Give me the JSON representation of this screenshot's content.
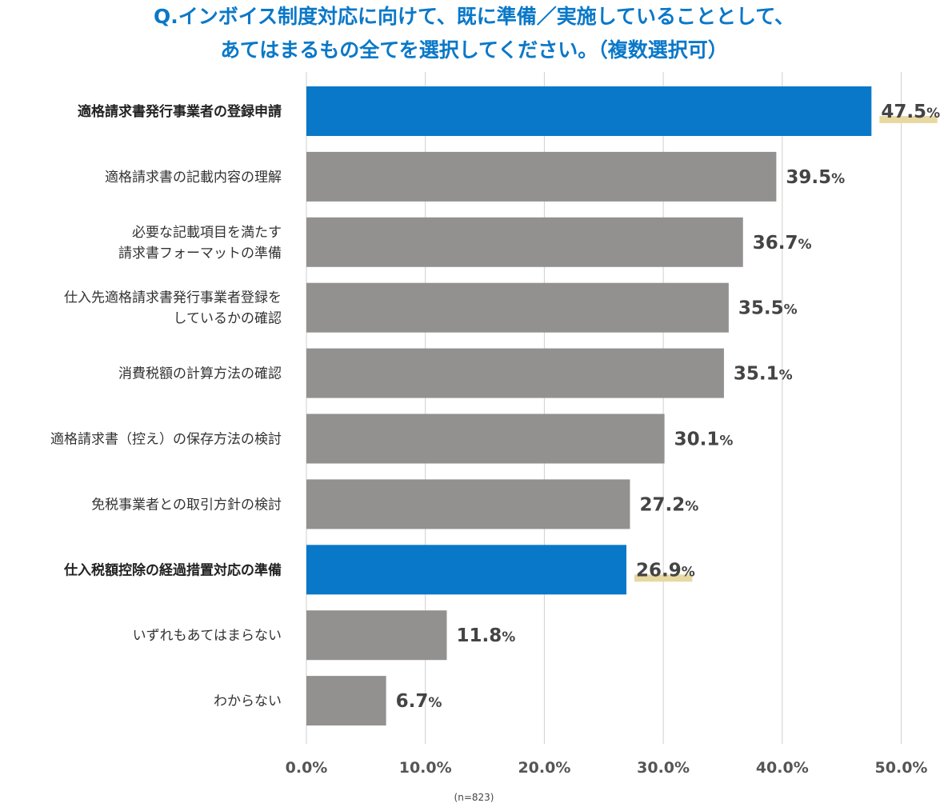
{
  "question": {
    "line1": "Q.インボイス制度対応に向けて、既に準備／実施していることとして、",
    "line2": "あてはまるもの全てを選択してください。（複数選択可）"
  },
  "sample_note": "(n=823)",
  "colors": {
    "title": "#0a78c8",
    "highlight_bar": "#0a78c8",
    "normal_bar": "#929190",
    "highlight_underline": "#e8d9a2",
    "grid": "#cfcfcf"
  },
  "chart_data": {
    "type": "bar",
    "orientation": "horizontal",
    "categories": [
      [
        "適格請求書発行事業者の登録申請"
      ],
      [
        "適格請求書の記載内容の理解"
      ],
      [
        "必要な記載項目を満たす",
        "請求書フォーマットの準備"
      ],
      [
        "仕入先適格請求書発行事業者登録を",
        "しているかの確認"
      ],
      [
        "消費税額の計算方法の確認"
      ],
      [
        "適格請求書（控え）の保存方法の検討"
      ],
      [
        "免税事業者との取引方針の検討"
      ],
      [
        "仕入税額控除の経過措置対応の準備"
      ],
      [
        "いずれもあてはまらない"
      ],
      [
        "わからない"
      ]
    ],
    "values": [
      47.5,
      39.5,
      36.7,
      35.5,
      35.1,
      30.1,
      27.2,
      26.9,
      11.8,
      6.7
    ],
    "value_labels": [
      "47.5",
      "39.5",
      "36.7",
      "35.5",
      "35.1",
      "30.1",
      "27.2",
      "26.9",
      "11.8",
      "6.7"
    ],
    "value_unit": "%",
    "highlighted": [
      true,
      false,
      false,
      false,
      false,
      false,
      false,
      true,
      false,
      false
    ],
    "xlim": [
      0,
      50
    ],
    "ticks": [
      "0.0%",
      "10.0%",
      "20.0%",
      "30.0%",
      "40.0%",
      "50.0%"
    ],
    "tick_values": [
      0,
      10,
      20,
      30,
      40,
      50
    ],
    "grid": true
  }
}
